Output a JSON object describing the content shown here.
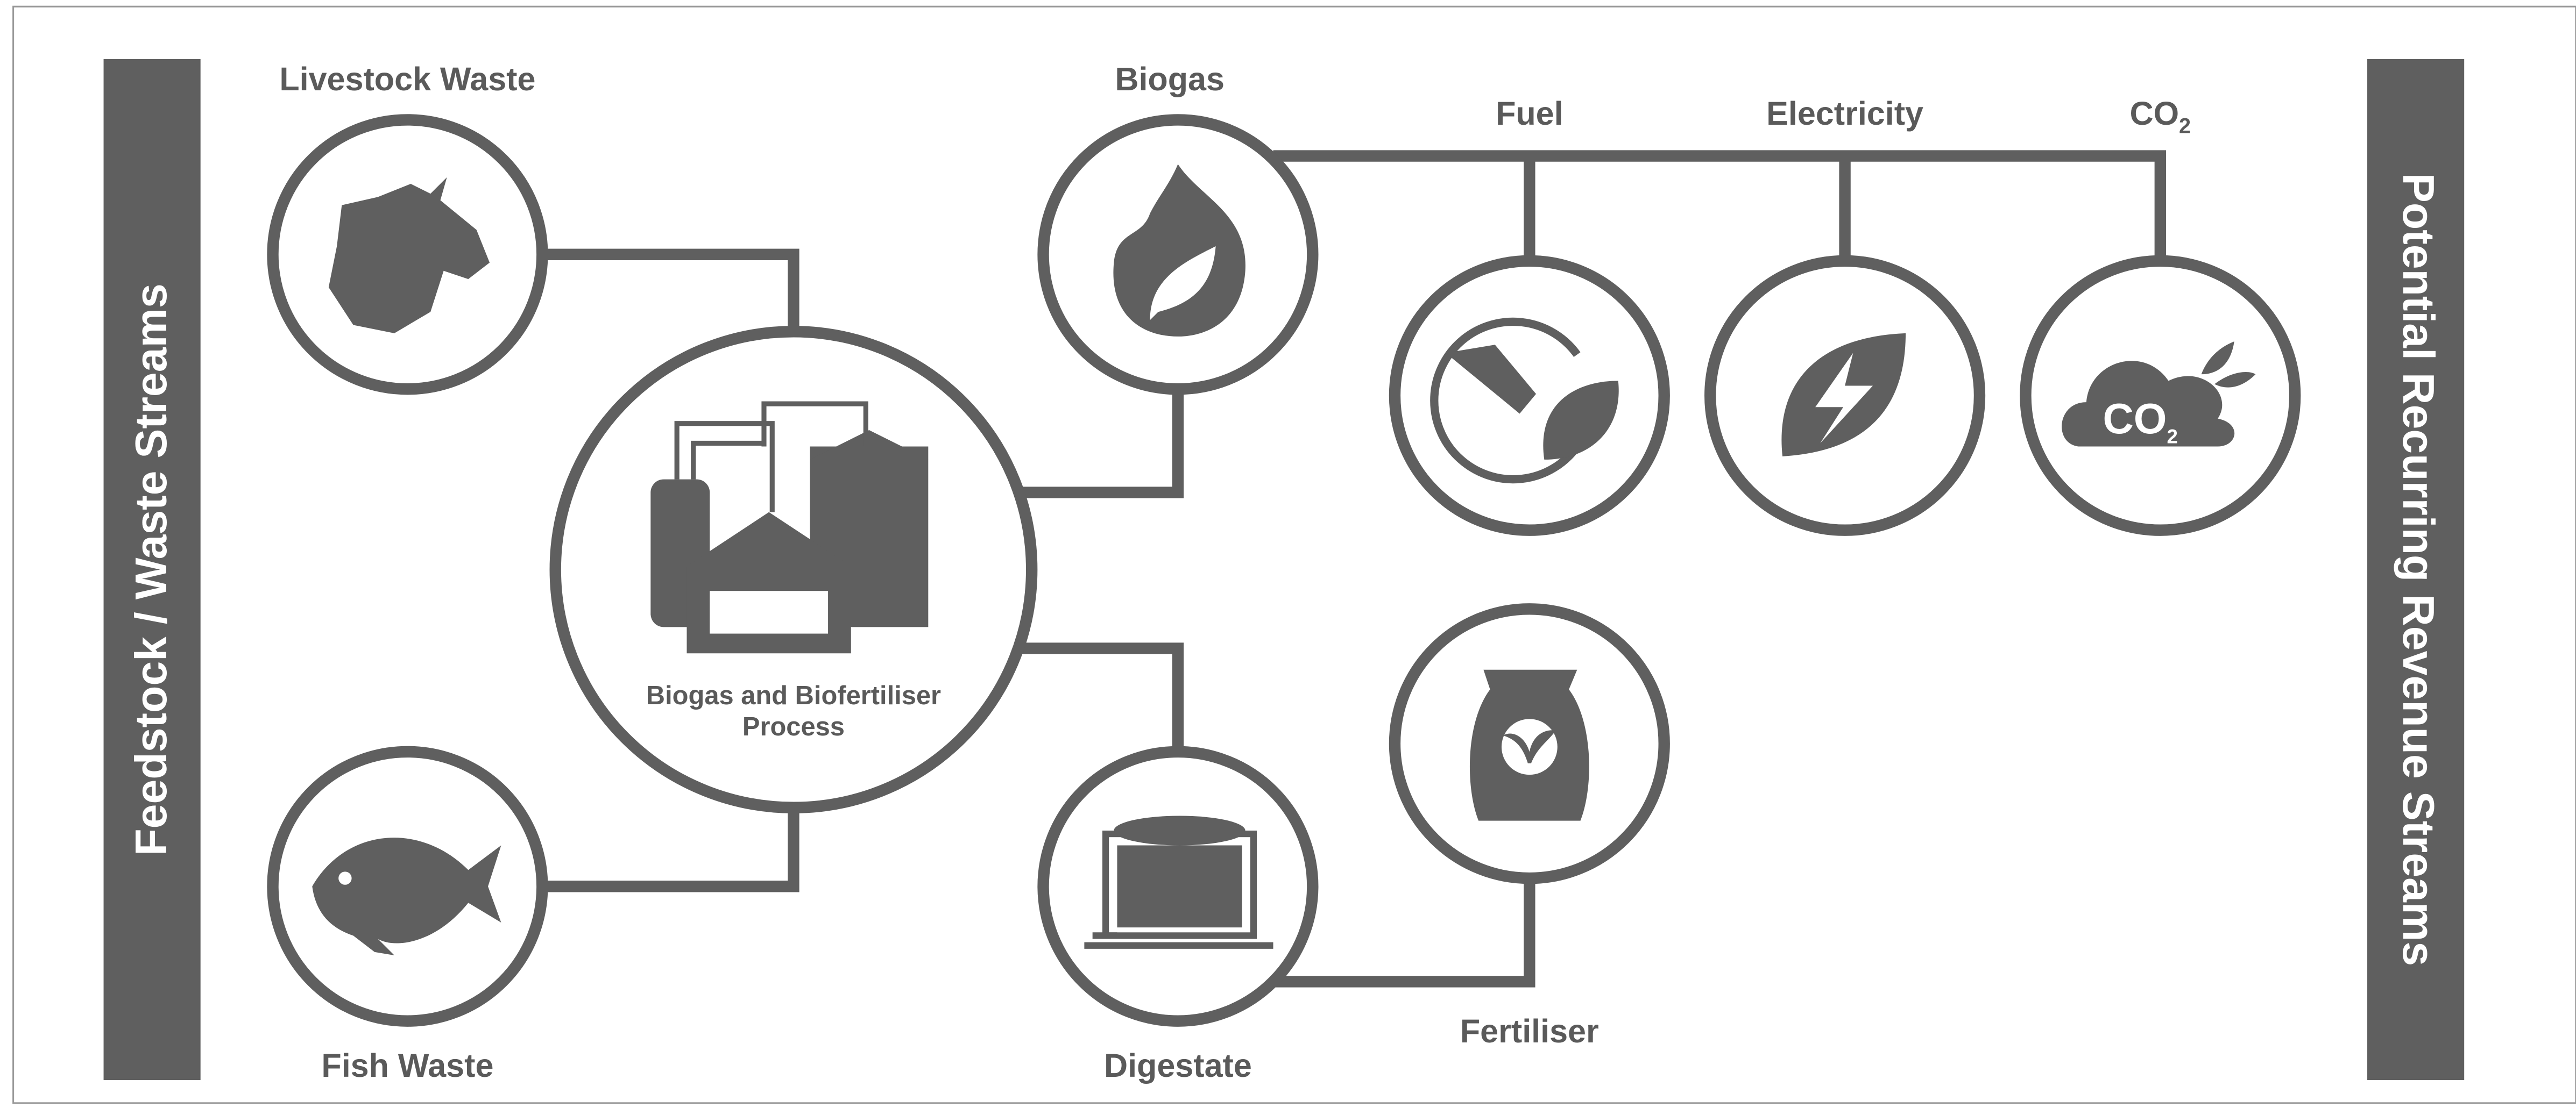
{
  "sidebars": {
    "left": "Feedstock / Waste Streams",
    "right": "Potential Recurring Revenue Streams"
  },
  "nodes": {
    "livestock": {
      "label": "Livestock Waste"
    },
    "fish": {
      "label": "Fish Waste"
    },
    "process": {
      "label_line1": "Biogas and Biofertiliser",
      "label_line2": "Process"
    },
    "biogas": {
      "label": "Biogas"
    },
    "digestate": {
      "label": "Digestate"
    },
    "fuel": {
      "label": "Fuel"
    },
    "electricity": {
      "label": "Electricity"
    },
    "co2": {
      "label": "CO",
      "label_subscript": "2",
      "icon_text": "CO",
      "icon_subscript": "2"
    },
    "fertiliser": {
      "label": "Fertiliser"
    }
  }
}
